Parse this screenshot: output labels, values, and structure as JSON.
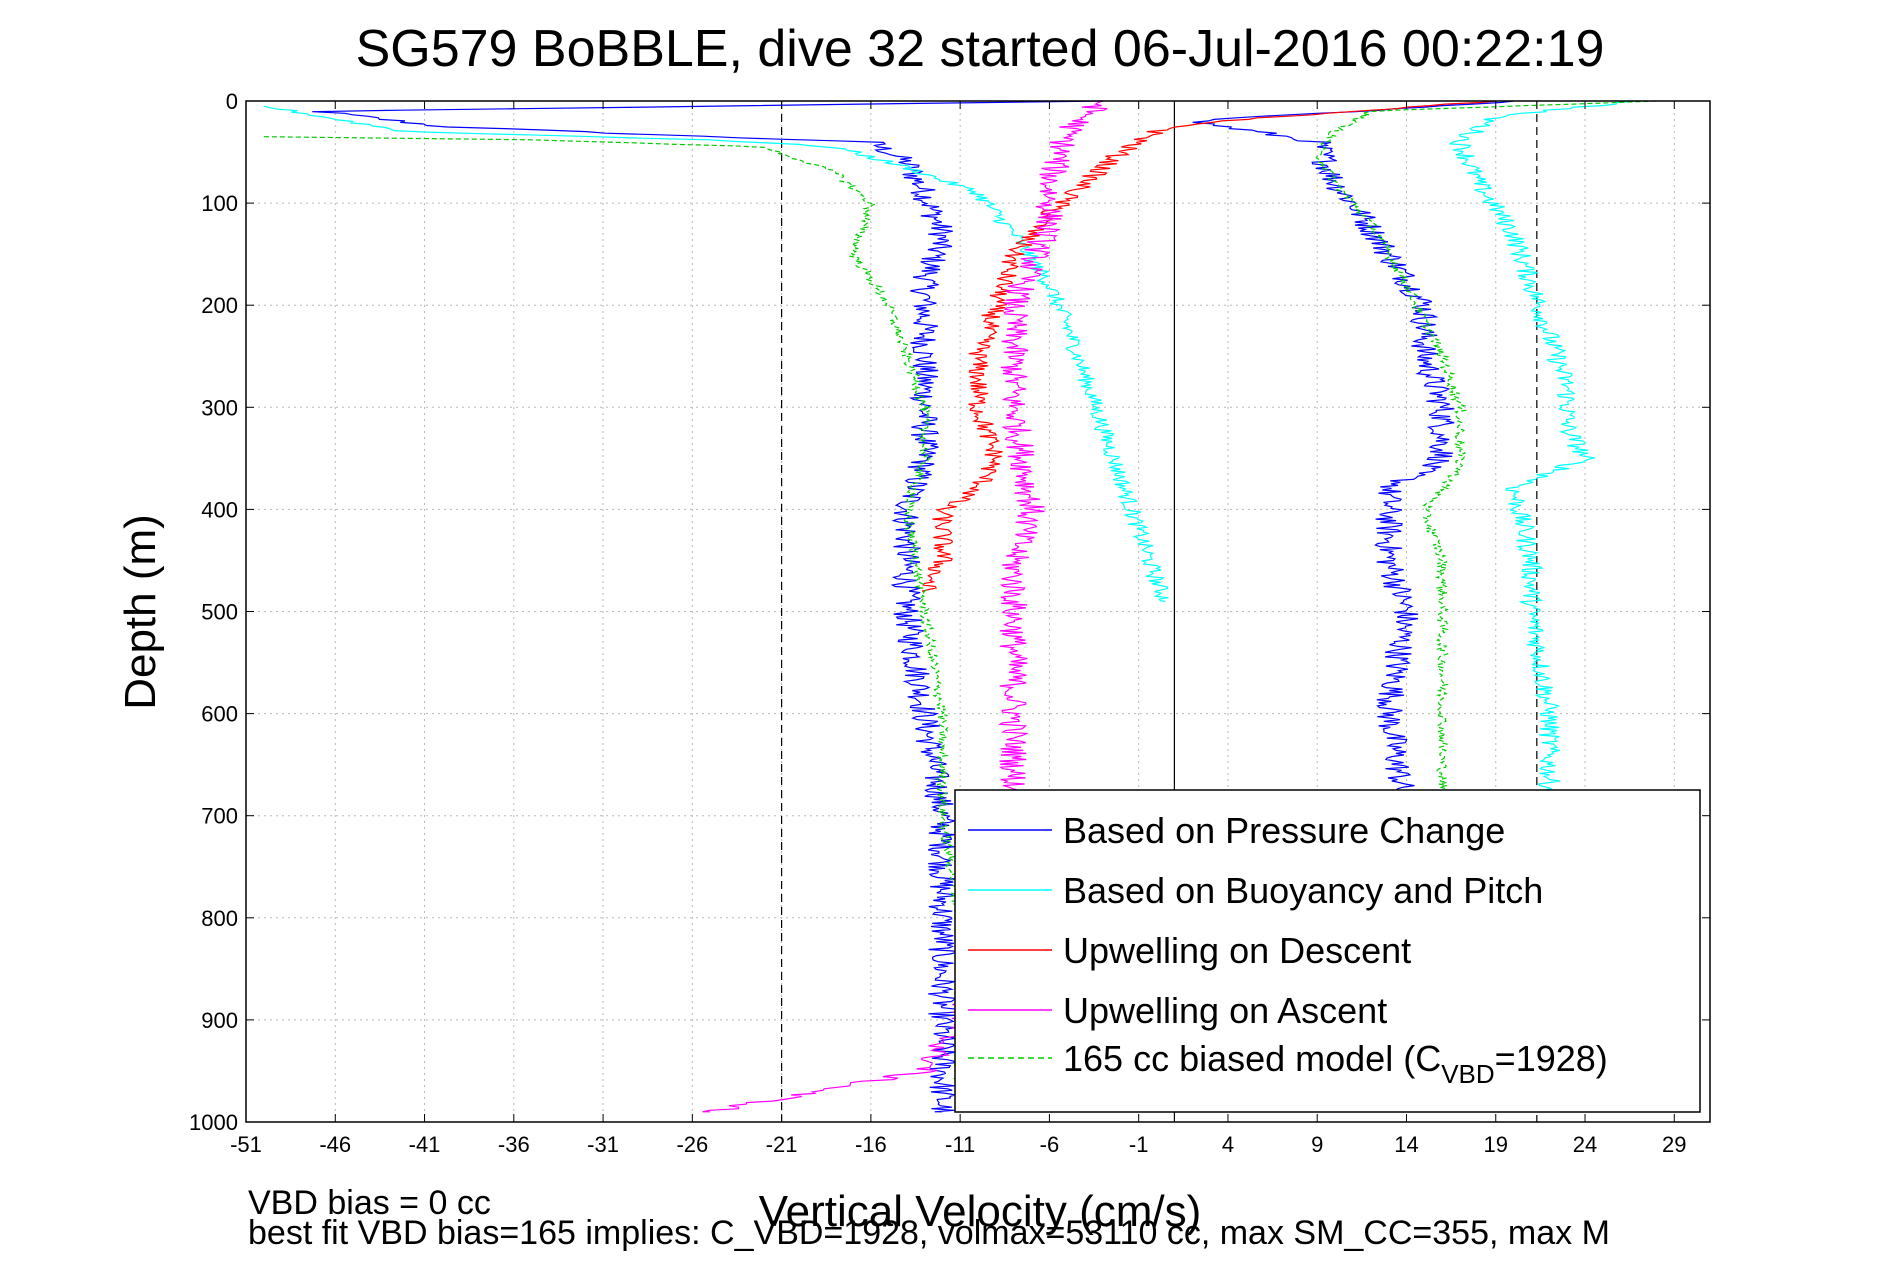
{
  "chart_data": {
    "type": "line",
    "title": "SG579 BoBBLE, dive 32 started 06-Jul-2016 00:22:19",
    "xlabel": "Vertical Velocity (cm/s)",
    "ylabel": "Depth (m)",
    "xlim": [
      -51,
      31
    ],
    "ylim": [
      0,
      1000
    ],
    "y_reversed": true,
    "x_ticks": [
      -51,
      -46,
      -41,
      -36,
      -31,
      -26,
      -21,
      -16,
      -11,
      -6,
      -1,
      4,
      9,
      14,
      19,
      24,
      29
    ],
    "y_ticks": [
      0,
      100,
      200,
      300,
      400,
      500,
      600,
      700,
      800,
      900,
      1000
    ],
    "grid": true,
    "reference_lines": {
      "dashed_x": [
        -21,
        21.3
      ],
      "solid_x": [
        1
      ]
    },
    "legend": {
      "placement": "bottom-right",
      "entries": [
        {
          "label": "Based on Pressure Change",
          "color": "#0000ff",
          "style": "solid"
        },
        {
          "label": "Based on Buoyancy and Pitch",
          "color": "#00ffff",
          "style": "solid"
        },
        {
          "label": "Upwelling on Descent",
          "color": "#ff0000",
          "style": "solid"
        },
        {
          "label": "Upwelling on Ascent",
          "color": "#ff00ff",
          "style": "solid"
        },
        {
          "label_pre": "165 cc biased model (C",
          "label_sub": "VBD",
          "label_post": "=1928)",
          "color": "#00cc00",
          "style": "dashed"
        }
      ]
    },
    "series": [
      {
        "color": "#0000ff",
        "noise": 0.8,
        "points": [
          [
            -3,
            0
          ],
          [
            -47,
            10
          ],
          [
            -40,
            25
          ],
          [
            -25,
            35
          ],
          [
            -16,
            40
          ],
          [
            -14,
            60
          ],
          [
            -13,
            90
          ],
          [
            -12,
            130
          ],
          [
            -13,
            180
          ],
          [
            -13,
            250
          ],
          [
            -13,
            350
          ],
          [
            -14,
            400
          ],
          [
            -14,
            500
          ],
          [
            -13,
            600
          ],
          [
            -12,
            700
          ],
          [
            -12,
            800
          ],
          [
            -12,
            900
          ],
          [
            -12,
            990
          ]
        ]
      },
      {
        "color": "#0000ff",
        "noise": 0.8,
        "points": [
          [
            20,
            0
          ],
          [
            2,
            20
          ],
          [
            9,
            40
          ],
          [
            10,
            80
          ],
          [
            11,
            100
          ],
          [
            13,
            150
          ],
          [
            15,
            200
          ],
          [
            15,
            250
          ],
          [
            16,
            300
          ],
          [
            16,
            350
          ],
          [
            13,
            380
          ],
          [
            13,
            450
          ],
          [
            14,
            500
          ],
          [
            13,
            600
          ],
          [
            14,
            700
          ],
          [
            14,
            800
          ],
          [
            13,
            900
          ],
          [
            12,
            980
          ]
        ]
      },
      {
        "color": "#00ffff",
        "noise": 0.5,
        "points": [
          [
            -50,
            5
          ],
          [
            -42,
            30
          ],
          [
            -25,
            38
          ],
          [
            -18,
            45
          ],
          [
            -14,
            65
          ],
          [
            -10,
            90
          ],
          [
            -8,
            130
          ],
          [
            -6,
            180
          ],
          [
            -5,
            220
          ],
          [
            -4,
            270
          ],
          [
            -3,
            320
          ],
          [
            -2,
            370
          ],
          [
            -1,
            420
          ],
          [
            0,
            470
          ],
          [
            0.5,
            490
          ]
        ]
      },
      {
        "color": "#00ffff",
        "noise": 0.6,
        "points": [
          [
            27,
            0
          ],
          [
            19,
            15
          ],
          [
            17,
            40
          ],
          [
            18,
            80
          ],
          [
            20,
            130
          ],
          [
            21,
            180
          ],
          [
            22,
            230
          ],
          [
            23,
            280
          ],
          [
            23,
            320
          ],
          [
            24,
            350
          ],
          [
            20,
            380
          ],
          [
            21,
            450
          ],
          [
            21,
            500
          ],
          [
            22,
            600
          ],
          [
            22,
            700
          ],
          [
            22,
            800
          ],
          [
            22,
            900
          ],
          [
            30,
            985
          ]
        ]
      },
      {
        "color": "#ff0000",
        "noise": 0.6,
        "points": [
          [
            19,
            0
          ],
          [
            3,
            20
          ],
          [
            0,
            30
          ],
          [
            -2,
            50
          ],
          [
            -4,
            80
          ],
          [
            -6,
            110
          ],
          [
            -8,
            150
          ],
          [
            -9,
            200
          ],
          [
            -10,
            250
          ],
          [
            -10,
            300
          ],
          [
            -9,
            350
          ],
          [
            -10,
            380
          ],
          [
            -12,
            400
          ],
          [
            -12,
            450
          ],
          [
            -13,
            480
          ]
        ]
      },
      {
        "color": "#ff00ff",
        "noise": 0.8,
        "points": [
          [
            -3,
            0
          ],
          [
            -5,
            30
          ],
          [
            -6,
            80
          ],
          [
            -6,
            120
          ],
          [
            -8,
            200
          ],
          [
            -8,
            300
          ],
          [
            -7,
            400
          ],
          [
            -8,
            450
          ],
          [
            -8,
            500
          ],
          [
            -8,
            600
          ],
          [
            -8,
            700
          ],
          [
            -9,
            800
          ],
          [
            -10,
            850
          ],
          [
            -11,
            900
          ],
          [
            -13,
            950
          ],
          [
            -25,
            990
          ]
        ]
      },
      {
        "color": "#00cc00",
        "dashed": true,
        "noise": 0.3,
        "points": [
          [
            -50,
            35
          ],
          [
            -35,
            38
          ],
          [
            -22,
            45
          ],
          [
            -18,
            70
          ],
          [
            -16,
            100
          ],
          [
            -17,
            150
          ],
          [
            -15,
            200
          ],
          [
            -14,
            250
          ],
          [
            -13,
            300
          ],
          [
            -13,
            350
          ],
          [
            -14,
            400
          ],
          [
            -13,
            500
          ],
          [
            -12,
            600
          ],
          [
            -12,
            700
          ],
          [
            -11,
            800
          ],
          [
            -11,
            900
          ],
          [
            -11,
            990
          ]
        ]
      },
      {
        "color": "#00cc00",
        "dashed": true,
        "noise": 0.3,
        "points": [
          [
            28,
            0
          ],
          [
            12,
            10
          ],
          [
            10,
            30
          ],
          [
            9,
            50
          ],
          [
            10,
            80
          ],
          [
            12,
            120
          ],
          [
            14,
            180
          ],
          [
            16,
            250
          ],
          [
            17,
            300
          ],
          [
            17,
            360
          ],
          [
            15,
            400
          ],
          [
            16,
            450
          ],
          [
            16,
            500
          ],
          [
            16,
            600
          ],
          [
            16,
            700
          ],
          [
            15,
            800
          ],
          [
            15,
            900
          ],
          [
            14,
            990
          ]
        ]
      }
    ],
    "annotations": {
      "bias_text": "VBD bias = 0 cc",
      "fit_text": "best fit VBD bias=165 implies: C_VBD=1928, volmax=53110 cc, max SM_CC=355, max M"
    }
  }
}
